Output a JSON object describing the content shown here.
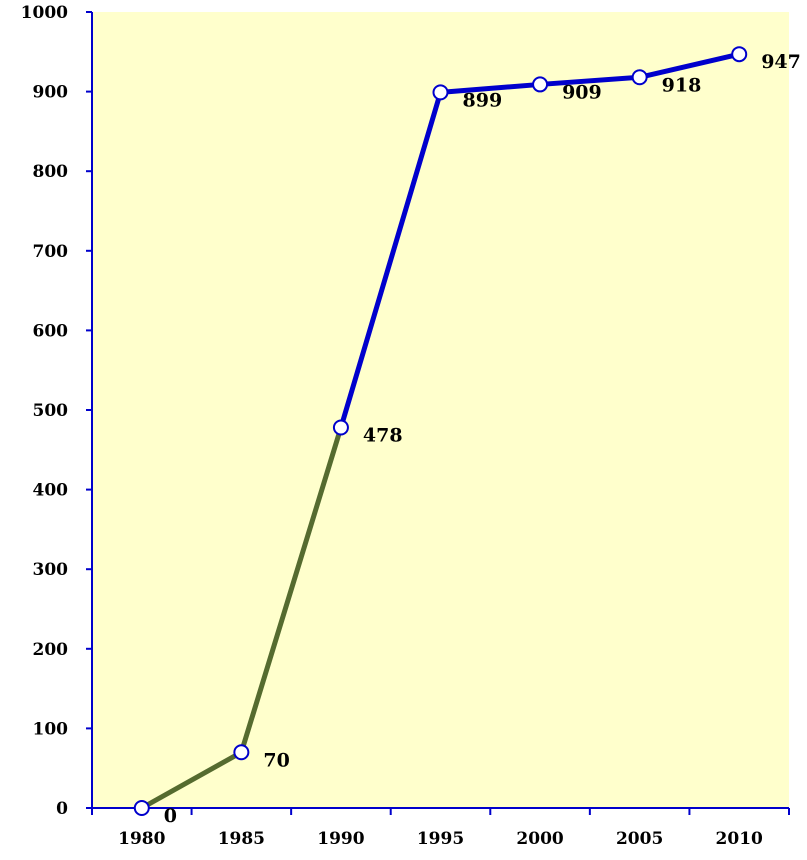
{
  "chart_data": {
    "type": "line",
    "title": "",
    "xlabel": "",
    "ylabel": "",
    "x": [
      "1980",
      "1985",
      "1990",
      "1995",
      "2000",
      "2005",
      "2010"
    ],
    "values": [
      0,
      70,
      478,
      899,
      909,
      918,
      947
    ],
    "data_labels": [
      "0",
      "70",
      "478",
      "899",
      "909",
      "918",
      "947"
    ],
    "ylim": [
      0,
      1000
    ],
    "yticks": [
      "0",
      "100",
      "200",
      "300",
      "400",
      "500",
      "600",
      "700",
      "800",
      "900",
      "1000"
    ],
    "grid": false,
    "legend": "none",
    "colors": {
      "plot_background": "#FFFFCC",
      "axis": "#0000CC",
      "segment_early": "#556B2F",
      "segment_late": "#0000CC",
      "marker_fill": "#FFFFFF",
      "marker_stroke": "#0000CC"
    }
  }
}
